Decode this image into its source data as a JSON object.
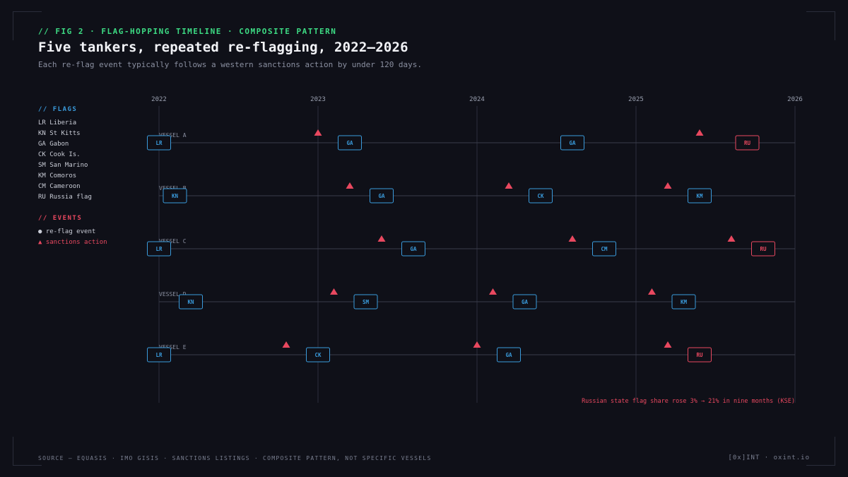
{
  "header": {
    "kicker": "// FIG 2 · FLAG-HOPPING TIMELINE · COMPOSITE PATTERN",
    "title": "Five tankers, repeated re-flagging, 2022–2026",
    "subtitle": "Each re-flag event typically follows a western sanctions action by under 120 days."
  },
  "legend": {
    "flags_heading": "// FLAGS",
    "flags": [
      "LR Liberia",
      "KN St Kitts",
      "GA Gabon",
      "CK Cook Is.",
      "SM San Marino",
      "KM Comoros",
      "CM Cameroon",
      "RU Russia flag"
    ],
    "events_heading": "// EVENTS",
    "events": [
      "● re-flag event",
      "▲ sanctions action"
    ]
  },
  "chart_data": {
    "type": "timeline",
    "x_ticks": [
      "2022",
      "2023",
      "2024",
      "2025",
      "2026"
    ],
    "xlim": [
      2022,
      2026
    ],
    "vessels": [
      {
        "name": "VESSEL A",
        "flags": [
          {
            "code": "LR",
            "year": 2022.0
          },
          {
            "code": "GA",
            "year": 2023.2
          },
          {
            "code": "GA",
            "year": 2024.6
          },
          {
            "code": "RU",
            "year": 2025.7
          }
        ],
        "sanctions": [
          2023.0,
          2025.4
        ]
      },
      {
        "name": "VESSEL B",
        "flags": [
          {
            "code": "KN",
            "year": 2022.1
          },
          {
            "code": "GA",
            "year": 2023.4
          },
          {
            "code": "CK",
            "year": 2024.4
          },
          {
            "code": "KM",
            "year": 2025.4
          }
        ],
        "sanctions": [
          2023.2,
          2024.2,
          2025.2
        ]
      },
      {
        "name": "VESSEL C",
        "flags": [
          {
            "code": "LR",
            "year": 2022.0
          },
          {
            "code": "GA",
            "year": 2023.6
          },
          {
            "code": "CM",
            "year": 2024.8
          },
          {
            "code": "RU",
            "year": 2025.8
          }
        ],
        "sanctions": [
          2023.4,
          2024.6,
          2025.6
        ]
      },
      {
        "name": "VESSEL D",
        "flags": [
          {
            "code": "KN",
            "year": 2022.2
          },
          {
            "code": "SM",
            "year": 2023.3
          },
          {
            "code": "GA",
            "year": 2024.3
          },
          {
            "code": "KM",
            "year": 2025.3
          }
        ],
        "sanctions": [
          2023.1,
          2024.1,
          2025.1
        ]
      },
      {
        "name": "VESSEL E",
        "flags": [
          {
            "code": "LR",
            "year": 2022.0
          },
          {
            "code": "CK",
            "year": 2023.0
          },
          {
            "code": "GA",
            "year": 2024.2
          },
          {
            "code": "RU",
            "year": 2025.4
          }
        ],
        "sanctions": [
          2022.8,
          2024.0,
          2025.2
        ]
      }
    ],
    "annotation": "Russian state flag share rose 3% → 21% in nine months (KSE)"
  },
  "colors": {
    "flag_default": "#3a9bdc",
    "flag_russia": "#e8485f",
    "sanction": "#e8485f",
    "grid": "#2b2e3b",
    "lane": "#3a3d4a"
  },
  "footer": {
    "source": "SOURCE — EQUASIS · IMO GISIS · SANCTIONS LISTINGS · COMPOSITE PATTERN, NOT SPECIFIC VESSELS",
    "brand": "[0x]INT · oxint.io"
  }
}
